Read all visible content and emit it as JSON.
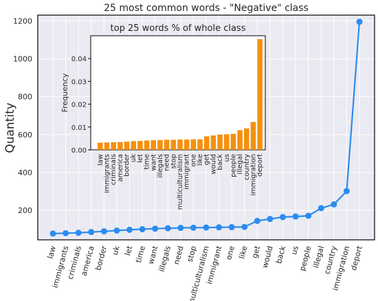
{
  "chart_data": [
    {
      "type": "line",
      "title": "25 most common words - \"Negative\" class",
      "xlabel": "",
      "ylabel": "Quantity",
      "ylim": [
        45,
        1230
      ],
      "yticks": [
        200,
        400,
        600,
        800,
        1000,
        1200
      ],
      "grid": true,
      "categories": [
        "law",
        "immigrants",
        "criminals",
        "america",
        "border",
        "uk",
        "let",
        "time",
        "want",
        "illegals",
        "need",
        "stop",
        "multiculturalism",
        "immigrant",
        "one",
        "like",
        "get",
        "would",
        "back",
        "us",
        "people",
        "illegal",
        "country",
        "immigration",
        "deport"
      ],
      "values": [
        78,
        80,
        82,
        86,
        90,
        94,
        98,
        101,
        104,
        106,
        108,
        109,
        110,
        111,
        112,
        113,
        145,
        155,
        165,
        168,
        172,
        212,
        232,
        302,
        1195
      ],
      "color": "#2b8cee"
    },
    {
      "type": "bar",
      "title": "top 25 words % of whole class",
      "xlabel": "",
      "ylabel": "Frequency",
      "ylim": [
        0,
        0.05
      ],
      "yticks": [
        0.0,
        0.01,
        0.02,
        0.03,
        0.04
      ],
      "yticklabels": [
        "0.00",
        "0.01",
        "0.02",
        "0.03",
        "0.04"
      ],
      "categories": [
        "law",
        "immigrants",
        "criminals",
        "america",
        "border",
        "uk",
        "let",
        "time",
        "want",
        "illegals",
        "need",
        "stop",
        "multiculturalism",
        "immigrant",
        "one",
        "like",
        "get",
        "would",
        "back",
        "us",
        "people",
        "illegal",
        "country",
        "immigration",
        "deport"
      ],
      "values": [
        0.0031,
        0.0032,
        0.0033,
        0.0034,
        0.0036,
        0.0038,
        0.0039,
        0.0041,
        0.0042,
        0.0043,
        0.0044,
        0.0044,
        0.0045,
        0.0045,
        0.0046,
        0.0046,
        0.0059,
        0.0063,
        0.0067,
        0.0068,
        0.007,
        0.0086,
        0.0094,
        0.0122,
        0.0485
      ],
      "color": "#f5900e"
    }
  ]
}
